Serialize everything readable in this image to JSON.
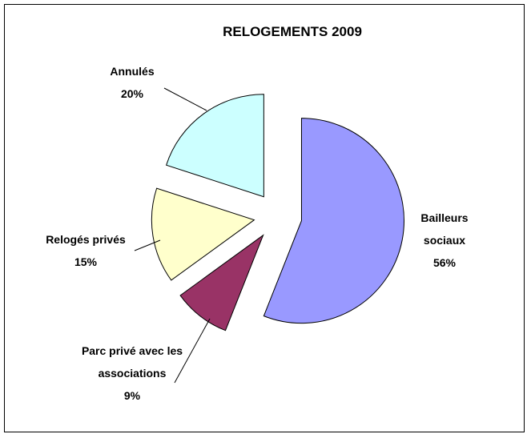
{
  "chart_data": {
    "type": "pie",
    "title": "RELOGEMENTS 2009",
    "categories": [
      "Bailleurs sociaux",
      "Parc privé avec les associations",
      "Relogés privés",
      "Annulés"
    ],
    "values": [
      56,
      9,
      15,
      20
    ],
    "value_labels": [
      "56%",
      "9%",
      "15%",
      "20%"
    ],
    "colors": [
      "#9999ff",
      "#993366",
      "#ffffcc",
      "#ccffff"
    ],
    "exploded": true
  }
}
